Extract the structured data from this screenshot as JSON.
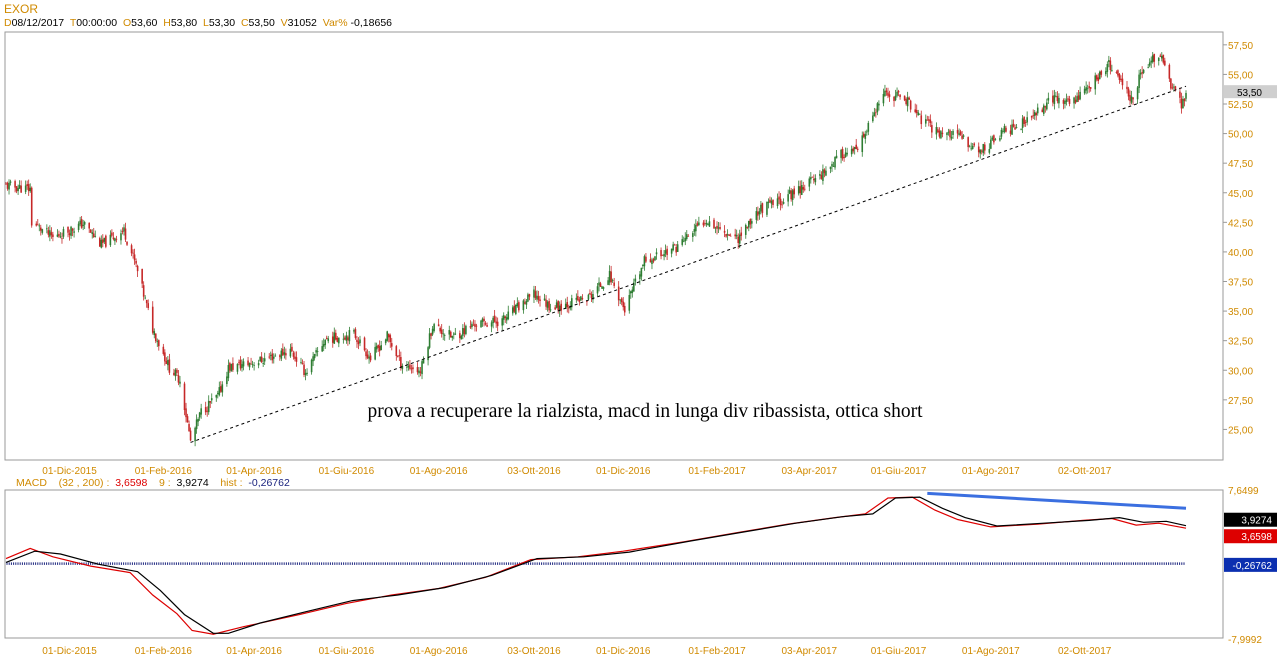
{
  "header": {
    "symbol": "EXOR",
    "d_label": "D",
    "d_value": "08/12/2017",
    "t_label": "T",
    "t_value": "00:00:00",
    "o_label": "O",
    "o_value": "53,60",
    "h_label": "H",
    "h_value": "53,80",
    "l_label": "L",
    "l_value": "53,30",
    "c_label": "C",
    "c_value": "53,50",
    "v_label": "V",
    "v_value": "31052",
    "var_label": "Var%",
    "var_value": "-0,18656"
  },
  "macd_header": {
    "name": "MACD",
    "params": "(32 , 200) :",
    "macd_value": "3,6598",
    "signal_label": "9 :",
    "signal_value": "3,9274",
    "hist_label": "hist :",
    "hist_value": "-0,26762"
  },
  "colors": {
    "axis_label": "#d08a00",
    "macd_line": "#dd0000",
    "signal_line": "#000000",
    "histogram": "#1a237e",
    "divergence_line": "#3b6fe0",
    "candle_up": "#2e7d32",
    "candle_down": "#c62828"
  },
  "chart_data": [
    {
      "type": "candlestick",
      "title": "EXOR",
      "annotation": "prova a recuperare la rialzista, macd in lunga div ribassista, ottica short",
      "last_price_label": "53,50",
      "last_price": 53.5,
      "ylim": [
        22.5,
        58.5
      ],
      "y_ticks": [
        "57,50",
        "55,00",
        "52,50",
        "50,00",
        "47,50",
        "45,00",
        "42,50",
        "40,00",
        "37,50",
        "35,00",
        "32,50",
        "30,00",
        "27,50",
        "25,00"
      ],
      "x_ticks": [
        "01-Dic-2015",
        "01-Feb-2016",
        "01-Apr-2016",
        "01-Giu-2016",
        "01-Ago-2016",
        "03-Ott-2016",
        "01-Dic-2016",
        "01-Feb-2017",
        "03-Apr-2017",
        "01-Giu-2017",
        "01-Ago-2017",
        "02-Ott-2017"
      ],
      "x_tick_dates": [
        "2015-12-01",
        "2016-02-01",
        "2016-04-01",
        "2016-06-01",
        "2016-08-01",
        "2016-10-03",
        "2016-12-01",
        "2017-02-01",
        "2017-04-03",
        "2017-06-01",
        "2017-08-01",
        "2017-10-02"
      ],
      "date_range": [
        "2015-10-20",
        "2017-12-08"
      ],
      "close_path": [
        [
          "2015-10-20",
          45.6
        ],
        [
          "2015-11-05",
          45.3
        ],
        [
          "2015-11-06",
          42.5
        ],
        [
          "2015-11-20",
          41.2
        ],
        [
          "2015-12-10",
          42.4
        ],
        [
          "2015-12-22",
          40.6
        ],
        [
          "2016-01-06",
          41.8
        ],
        [
          "2016-01-14",
          38.8
        ],
        [
          "2016-01-25",
          33.5
        ],
        [
          "2016-02-05",
          30.2
        ],
        [
          "2016-02-12",
          29.2
        ],
        [
          "2016-02-19",
          24.0
        ],
        [
          "2016-02-26",
          26.5
        ],
        [
          "2016-03-08",
          27.8
        ],
        [
          "2016-03-15",
          30.2
        ],
        [
          "2016-04-05",
          30.8
        ],
        [
          "2016-04-25",
          31.7
        ],
        [
          "2016-05-05",
          29.8
        ],
        [
          "2016-05-18",
          32.6
        ],
        [
          "2016-06-06",
          33.1
        ],
        [
          "2016-06-17",
          31.0
        ],
        [
          "2016-06-28",
          32.9
        ],
        [
          "2016-07-07",
          30.6
        ],
        [
          "2016-07-20",
          29.9
        ],
        [
          "2016-07-28",
          33.8
        ],
        [
          "2016-08-10",
          32.8
        ],
        [
          "2016-08-25",
          33.9
        ],
        [
          "2016-09-12",
          34.2
        ],
        [
          "2016-10-03",
          36.4
        ],
        [
          "2016-10-15",
          35.3
        ],
        [
          "2016-11-08",
          36.1
        ],
        [
          "2016-11-22",
          38.0
        ],
        [
          "2016-12-02",
          35.1
        ],
        [
          "2016-12-15",
          39.2
        ],
        [
          "2017-01-05",
          40.4
        ],
        [
          "2017-01-25",
          42.8
        ],
        [
          "2017-02-03",
          41.9
        ],
        [
          "2017-02-15",
          41.2
        ],
        [
          "2017-03-01",
          43.6
        ],
        [
          "2017-03-15",
          44.3
        ],
        [
          "2017-04-10",
          46.5
        ],
        [
          "2017-04-25",
          48.3
        ],
        [
          "2017-05-05",
          48.5
        ],
        [
          "2017-05-12",
          50.6
        ],
        [
          "2017-05-22",
          53.2
        ],
        [
          "2017-06-05",
          53.1
        ],
        [
          "2017-06-15",
          51.3
        ],
        [
          "2017-06-26",
          50.2
        ],
        [
          "2017-07-10",
          49.8
        ],
        [
          "2017-07-25",
          48.5
        ],
        [
          "2017-08-10",
          50.2
        ],
        [
          "2017-08-25",
          51.0
        ],
        [
          "2017-09-10",
          53.0
        ],
        [
          "2017-09-22",
          52.6
        ],
        [
          "2017-10-05",
          54.0
        ],
        [
          "2017-10-18",
          55.8
        ],
        [
          "2017-11-02",
          53.0
        ],
        [
          "2017-11-10",
          55.5
        ],
        [
          "2017-11-20",
          56.8
        ],
        [
          "2017-11-28",
          54.2
        ],
        [
          "2017-12-05",
          52.4
        ],
        [
          "2017-12-08",
          53.5
        ]
      ],
      "trendline": [
        [
          "2016-02-19",
          23.9
        ],
        [
          "2017-12-08",
          54.0
        ]
      ]
    },
    {
      "type": "line",
      "title": "MACD",
      "ylim": [
        -7.9992,
        7.6499
      ],
      "y_tick_labels": [
        "7,6499",
        "-7,9992"
      ],
      "value_labels": [
        "3,9274",
        "3,6598",
        "-0,26762"
      ],
      "series": [
        {
          "name": "MACD",
          "color": "#dd0000",
          "values": [
            [
              "2015-10-20",
              0.4
            ],
            [
              "2015-11-05",
              1.5
            ],
            [
              "2015-11-20",
              0.6
            ],
            [
              "2015-12-15",
              -0.4
            ],
            [
              "2016-01-10",
              -1.1
            ],
            [
              "2016-01-25",
              -3.5
            ],
            [
              "2016-02-10",
              -5.5
            ],
            [
              "2016-02-20",
              -7.3
            ],
            [
              "2016-03-05",
              -7.7
            ],
            [
              "2016-03-25",
              -6.9
            ],
            [
              "2016-05-01",
              -5.6
            ],
            [
              "2016-06-01",
              -4.4
            ],
            [
              "2016-07-01",
              -3.5
            ],
            [
              "2016-08-01",
              -2.8
            ],
            [
              "2016-09-01",
              -1.6
            ],
            [
              "2016-10-01",
              0.3
            ],
            [
              "2016-11-01",
              0.6
            ],
            [
              "2016-12-01",
              1.2
            ],
            [
              "2017-01-10",
              2.2
            ],
            [
              "2017-02-15",
              3.2
            ],
            [
              "2017-03-20",
              4.1
            ],
            [
              "2017-04-20",
              4.8
            ],
            [
              "2017-05-10",
              5.2
            ],
            [
              "2017-05-25",
              6.9
            ],
            [
              "2017-06-10",
              7.0
            ],
            [
              "2017-06-25",
              5.6
            ],
            [
              "2017-07-10",
              4.6
            ],
            [
              "2017-08-01",
              3.8
            ],
            [
              "2017-09-01",
              4.1
            ],
            [
              "2017-10-01",
              4.5
            ],
            [
              "2017-10-20",
              4.7
            ],
            [
              "2017-11-05",
              4.0
            ],
            [
              "2017-11-20",
              4.2
            ],
            [
              "2017-12-08",
              3.6598
            ]
          ]
        },
        {
          "name": "9",
          "color": "#000000",
          "values": [
            [
              "2015-10-20",
              0.0
            ],
            [
              "2015-11-08",
              1.2
            ],
            [
              "2015-11-25",
              0.9
            ],
            [
              "2015-12-20",
              -0.2
            ],
            [
              "2016-01-15",
              -1.0
            ],
            [
              "2016-01-30",
              -3.0
            ],
            [
              "2016-02-15",
              -5.6
            ],
            [
              "2016-03-05",
              -7.6
            ],
            [
              "2016-03-15",
              -7.6
            ],
            [
              "2016-04-05",
              -6.5
            ],
            [
              "2016-05-05",
              -5.3
            ],
            [
              "2016-06-05",
              -4.1
            ],
            [
              "2016-07-05",
              -3.5
            ],
            [
              "2016-08-05",
              -2.7
            ],
            [
              "2016-09-05",
              -1.4
            ],
            [
              "2016-10-05",
              0.4
            ],
            [
              "2016-11-05",
              0.6
            ],
            [
              "2016-12-05",
              1.1
            ],
            [
              "2017-01-15",
              2.3
            ],
            [
              "2017-02-20",
              3.3
            ],
            [
              "2017-03-25",
              4.2
            ],
            [
              "2017-04-25",
              4.9
            ],
            [
              "2017-05-15",
              5.2
            ],
            [
              "2017-05-30",
              6.9
            ],
            [
              "2017-06-15",
              7.0
            ],
            [
              "2017-06-30",
              5.8
            ],
            [
              "2017-07-15",
              4.8
            ],
            [
              "2017-08-05",
              3.9
            ],
            [
              "2017-09-05",
              4.2
            ],
            [
              "2017-10-05",
              4.5
            ],
            [
              "2017-10-25",
              4.8
            ],
            [
              "2017-11-10",
              4.3
            ],
            [
              "2017-11-25",
              4.4
            ],
            [
              "2017-12-08",
              3.9274
            ]
          ]
        },
        {
          "name": "hist",
          "color": "#1a237e",
          "values": [
            [
              "2015-10-20",
              -0.27
            ],
            [
              "2017-12-08",
              -0.26762
            ]
          ]
        }
      ],
      "divergence_line": [
        [
          "2017-06-20",
          7.4
        ],
        [
          "2017-12-08",
          5.8
        ]
      ]
    }
  ]
}
